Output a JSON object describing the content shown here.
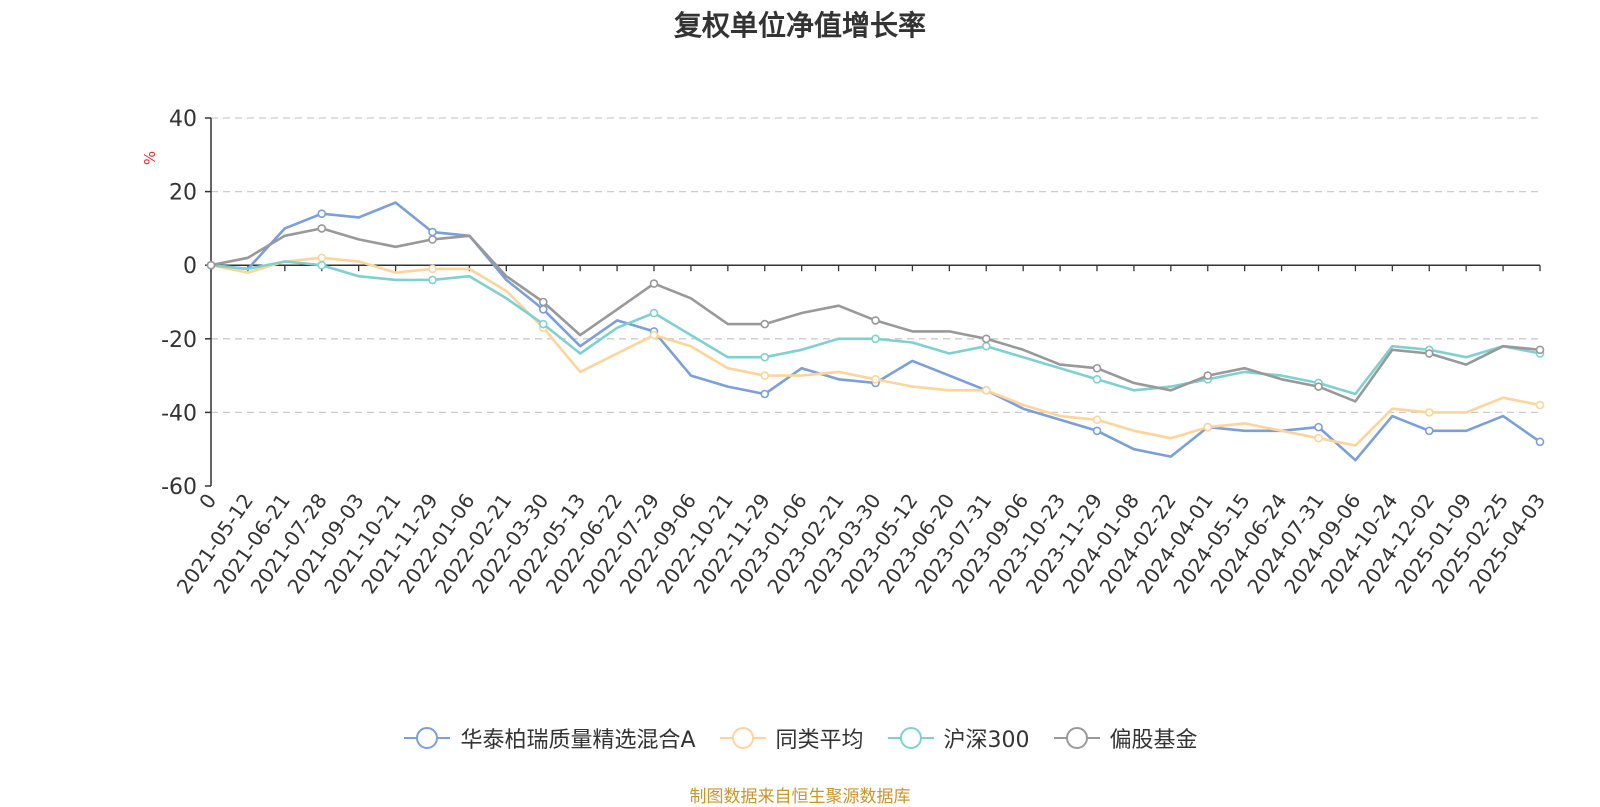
{
  "chart_data": {
    "type": "line",
    "title": "复权单位净值增长率",
    "ylabel": "%",
    "xlabel": "",
    "ylim": [
      -60,
      40
    ],
    "yticks": [
      40,
      20,
      0,
      -20,
      -40,
      -60
    ],
    "grid": true,
    "legend_position": "bottom",
    "categories": [
      "0",
      "2021-05-12",
      "2021-06-21",
      "2021-07-28",
      "2021-09-03",
      "2021-10-21",
      "2021-11-29",
      "2022-01-06",
      "2022-02-21",
      "2022-03-30",
      "2022-05-13",
      "2022-06-22",
      "2022-07-29",
      "2022-09-06",
      "2022-10-21",
      "2022-11-29",
      "2023-01-06",
      "2023-02-21",
      "2023-03-30",
      "2023-05-12",
      "2023-06-20",
      "2023-07-31",
      "2023-09-06",
      "2023-10-23",
      "2023-11-29",
      "2024-01-08",
      "2024-02-22",
      "2024-04-01",
      "2024-05-15",
      "2024-06-24",
      "2024-07-31",
      "2024-09-06",
      "2024-10-24",
      "2024-12-02",
      "2025-01-09",
      "2025-02-25",
      "2025-04-03"
    ],
    "series": [
      {
        "name": "华泰柏瑞质量精选混合A",
        "color": "#7b9fd8",
        "values": [
          0,
          -1,
          10,
          14,
          13,
          17,
          9,
          8,
          -4,
          -12,
          -22,
          -15,
          -18,
          -30,
          -33,
          -35,
          -28,
          -31,
          -32,
          -26,
          -30,
          -34,
          -39,
          -42,
          -45,
          -50,
          -52,
          -44,
          -45,
          -45,
          -44,
          -53,
          -41,
          -45,
          -45,
          -41,
          -48
        ]
      },
      {
        "name": "同类平均",
        "color": "#fdd59a",
        "values": [
          0,
          -2,
          1,
          2,
          1,
          -2,
          -1,
          -1,
          -7,
          -17,
          -29,
          -24,
          -19,
          -22,
          -28,
          -30,
          -30,
          -29,
          -31,
          -33,
          -34,
          -34,
          -38,
          -41,
          -42,
          -45,
          -47,
          -44,
          -43,
          -45,
          -47,
          -49,
          -39,
          -40,
          -40,
          -36,
          -38
        ]
      },
      {
        "name": "沪深300",
        "color": "#7fd1d1",
        "values": [
          0,
          -1,
          1,
          0,
          -3,
          -4,
          -4,
          -3,
          -9,
          -16,
          -24,
          -17,
          -13,
          -19,
          -25,
          -25,
          -23,
          -20,
          -20,
          -21,
          -24,
          -22,
          -25,
          -28,
          -31,
          -34,
          -33,
          -31,
          -29,
          -30,
          -32,
          -35,
          -22,
          -23,
          -25,
          -22,
          -24
        ]
      },
      {
        "name": "偏股基金",
        "color": "#999999",
        "values": [
          0,
          2,
          8,
          10,
          7,
          5,
          7,
          8,
          -3,
          -10,
          -19,
          -12,
          -5,
          -9,
          -16,
          -16,
          -13,
          -11,
          -15,
          -18,
          -18,
          -20,
          -23,
          -27,
          -28,
          -32,
          -34,
          -30,
          -28,
          -31,
          -33,
          -37,
          -23,
          -24,
          -27,
          -22,
          -23
        ]
      }
    ]
  },
  "source_text": "制图数据来自恒生聚源数据库"
}
